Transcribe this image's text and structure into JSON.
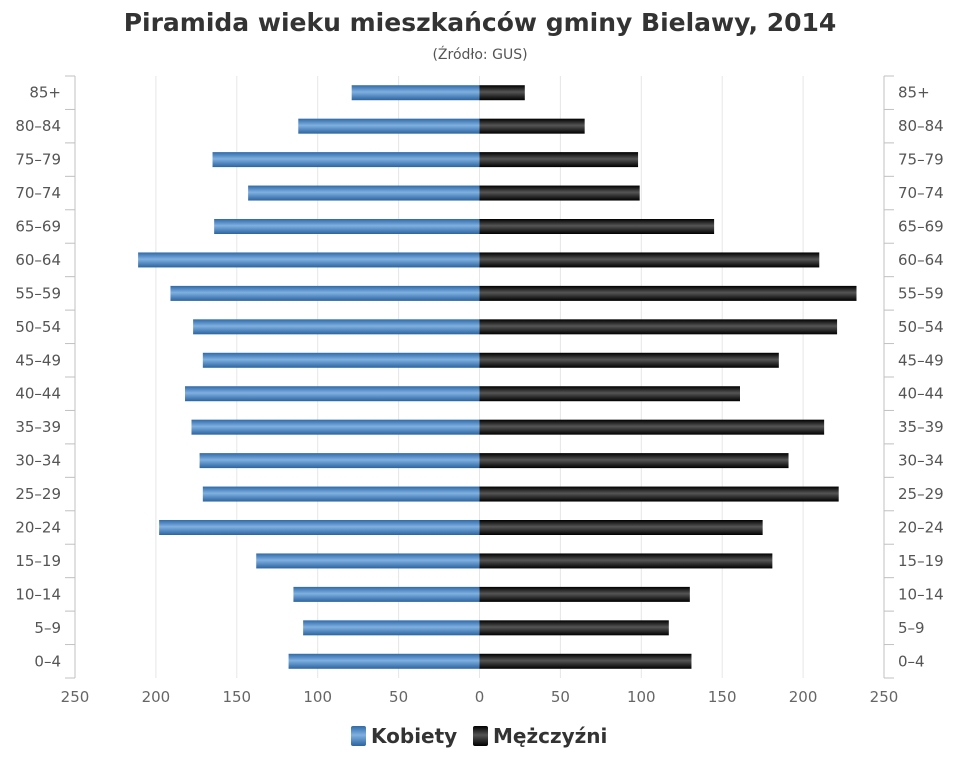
{
  "chart_data": {
    "type": "bar",
    "orientation": "horizontal-pyramid",
    "title": "Piramida wieku mieszkańców gminy Bielawy, 2014",
    "subtitle": "(Źródło: GUS)",
    "categories": [
      "85+",
      "80–84",
      "75–79",
      "70–74",
      "65–69",
      "60–64",
      "55–59",
      "50–54",
      "45–49",
      "40–44",
      "35–39",
      "30–34",
      "25–29",
      "20–24",
      "15–19",
      "10–14",
      "5–9",
      "0–4"
    ],
    "series": [
      {
        "name": "Kobiety",
        "side": "left",
        "color": "#4a86c5",
        "values": [
          79,
          112,
          165,
          143,
          164,
          211,
          191,
          177,
          171,
          182,
          178,
          173,
          171,
          198,
          138,
          115,
          109,
          118
        ]
      },
      {
        "name": "Mężczyźni",
        "side": "right",
        "color": "#1a1a1a",
        "values": [
          28,
          65,
          98,
          99,
          145,
          210,
          233,
          221,
          185,
          161,
          213,
          191,
          222,
          175,
          181,
          130,
          117,
          131
        ]
      }
    ],
    "xlim": [
      -250,
      250
    ],
    "ticks": [
      {
        "value": -250,
        "label": "250"
      },
      {
        "value": -200,
        "label": "200"
      },
      {
        "value": -150,
        "label": "150"
      },
      {
        "value": -100,
        "label": "100"
      },
      {
        "value": -50,
        "label": "50"
      },
      {
        "value": 0,
        "label": "0"
      },
      {
        "value": 50,
        "label": "50"
      },
      {
        "value": 100,
        "label": "100"
      },
      {
        "value": 150,
        "label": "150"
      },
      {
        "value": 200,
        "label": "200"
      },
      {
        "value": 250,
        "label": "250"
      }
    ],
    "grid": true,
    "legend": "bottom-center"
  }
}
